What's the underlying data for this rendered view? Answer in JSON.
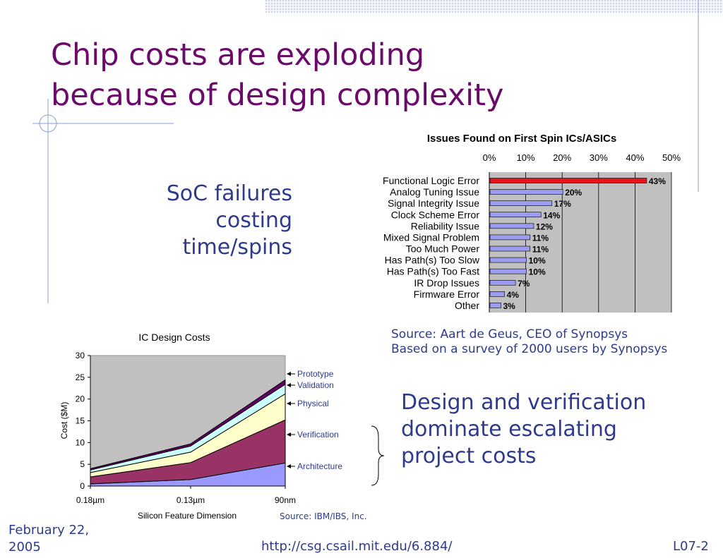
{
  "slide": {
    "title_lines": [
      "Chip costs are exploding",
      "because of design complexity"
    ],
    "left_callout_lines": [
      "SoC failures",
      "costing",
      "time/spins"
    ],
    "right_callout_lines": [
      "Design and verification",
      "dominate escalating",
      "project costs"
    ],
    "source_synopsys_lines": [
      "Source: Aart de Geus, CEO of Synopsys",
      "Based on a survey of 2000 users by Synopsys"
    ],
    "source_ibm": "Source: IBM/IBS, Inc.",
    "footer": {
      "date_lines": [
        "February 22,",
        "2005"
      ],
      "url": "http://csg.csail.mit.edu/6.884/",
      "page": "L07-2"
    }
  },
  "chart_data": [
    {
      "type": "bar",
      "title": "Issues Found on First Spin ICs/ASICs",
      "orientation": "horizontal",
      "xlim": [
        0,
        50
      ],
      "xticks": [
        "0%",
        "10%",
        "20%",
        "30%",
        "40%",
        "50%"
      ],
      "grid": true,
      "categories": [
        "Functional Logic Error",
        "Analog Tuning Issue",
        "Signal Integrity Issue",
        "Clock Scheme Error",
        "Reliability Issue",
        "Mixed Signal Problem",
        "Too Much Power",
        "Has Path(s) Too Slow",
        "Has Path(s) Too Fast",
        "IR Drop Issues",
        "Firmware Error",
        "Other"
      ],
      "values": [
        43,
        20,
        17,
        14,
        12,
        11,
        11,
        10,
        10,
        7,
        4,
        3
      ],
      "labels": [
        "43%",
        "20%",
        "17%",
        "14%",
        "12%",
        "11%",
        "11%",
        "10%",
        "10%",
        "7%",
        "4%",
        "3%"
      ],
      "colors": {
        "highlight": "#e8141c",
        "bar": "#9b9bf0",
        "plot_bg": "#c0c0c0"
      }
    },
    {
      "type": "area",
      "title": "IC Design Costs",
      "xlabel": "Silicon Feature Dimension",
      "ylabel": "Cost ($M)",
      "categories": [
        "0.18µm",
        "0.13µm",
        "90nm"
      ],
      "ylim": [
        0,
        30
      ],
      "yticks": [
        "0",
        "5",
        "10",
        "15",
        "20",
        "25",
        "30"
      ],
      "stacked": true,
      "series": [
        {
          "name": "Architecture",
          "values": [
            0.5,
            1.5,
            5.3
          ],
          "color": "#9999ff"
        },
        {
          "name": "Verification",
          "values": [
            1.6,
            3.9,
            9.9
          ],
          "color": "#993366"
        },
        {
          "name": "Physical",
          "values": [
            1.0,
            2.4,
            6.0
          ],
          "color": "#ffffcc"
        },
        {
          "name": "Validation",
          "values": [
            0.6,
            1.4,
            2.2
          ],
          "color": "#ccffff"
        },
        {
          "name": "Prototype",
          "values": [
            0.3,
            0.5,
            1.0
          ],
          "color": "#660066"
        }
      ],
      "colors": {
        "plot_bg": "#c0c0c0",
        "label_text": "#2e3a8c"
      }
    }
  ]
}
